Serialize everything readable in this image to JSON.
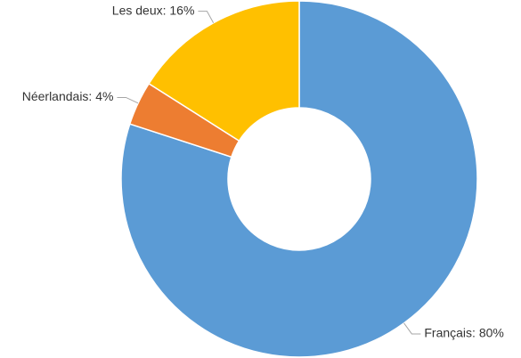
{
  "chart_data": {
    "type": "donut",
    "value_labels": [
      "Français: 80%",
      "Néerlandais: 4%",
      "Les deux: 16%"
    ],
    "values": [
      80,
      4,
      16
    ],
    "colors": [
      "#5b9bd5",
      "#ed7d31",
      "#ffc000"
    ]
  }
}
